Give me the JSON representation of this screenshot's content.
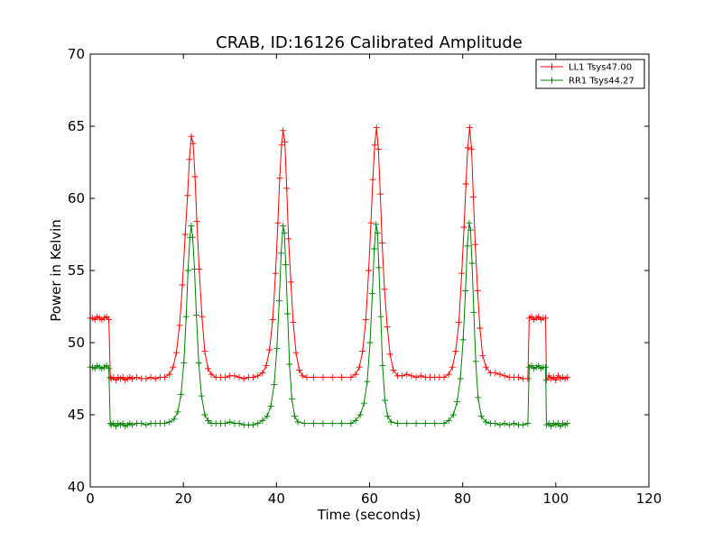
{
  "chart_data": {
    "type": "line",
    "title": "CRAB, ID:16126 Calibrated Amplitude",
    "xlabel": "Time (seconds)",
    "ylabel": "Power in Kelvin",
    "xlim": [
      0,
      120
    ],
    "ylim": [
      40,
      70
    ],
    "xticks": [
      0,
      20,
      40,
      60,
      80,
      100,
      120
    ],
    "yticks": [
      40,
      45,
      50,
      55,
      60,
      65,
      70
    ],
    "grid": false,
    "legend_position": "top-right",
    "marker": "+",
    "series": [
      {
        "name": "LL1 Tsys47.00",
        "color": "#ff0000",
        "points": [
          [
            0.0,
            51.7
          ],
          [
            0.5,
            51.7
          ],
          [
            1.0,
            51.6
          ],
          [
            1.5,
            51.8
          ],
          [
            2.0,
            51.7
          ],
          [
            2.5,
            51.6
          ],
          [
            3.0,
            51.7
          ],
          [
            3.5,
            51.8
          ],
          [
            4.0,
            51.6
          ],
          [
            4.3,
            47.6
          ],
          [
            4.5,
            47.5
          ],
          [
            5.0,
            47.6
          ],
          [
            5.5,
            47.4
          ],
          [
            6.0,
            47.6
          ],
          [
            6.5,
            47.5
          ],
          [
            7.0,
            47.6
          ],
          [
            7.5,
            47.4
          ],
          [
            8.0,
            47.5
          ],
          [
            8.5,
            47.6
          ],
          [
            9.0,
            47.5
          ],
          [
            10.0,
            47.6
          ],
          [
            11.0,
            47.5
          ],
          [
            12.0,
            47.5
          ],
          [
            13.0,
            47.6
          ],
          [
            14.0,
            47.5
          ],
          [
            15.0,
            47.6
          ],
          [
            16.0,
            47.6
          ],
          [
            17.0,
            47.8
          ],
          [
            17.8,
            48.3
          ],
          [
            18.5,
            49.3
          ],
          [
            19.2,
            51.2
          ],
          [
            19.8,
            54.0
          ],
          [
            20.4,
            57.5
          ],
          [
            20.9,
            60.2
          ],
          [
            21.3,
            62.7
          ],
          [
            21.7,
            64.3
          ],
          [
            22.1,
            63.8
          ],
          [
            22.5,
            61.5
          ],
          [
            22.9,
            58.4
          ],
          [
            23.4,
            55.1
          ],
          [
            24.0,
            51.8
          ],
          [
            24.6,
            49.4
          ],
          [
            25.3,
            48.2
          ],
          [
            26.0,
            47.8
          ],
          [
            27.0,
            47.6
          ],
          [
            28.0,
            47.6
          ],
          [
            29.0,
            47.6
          ],
          [
            30.0,
            47.7
          ],
          [
            31.0,
            47.7
          ],
          [
            32.0,
            47.6
          ],
          [
            33.0,
            47.5
          ],
          [
            34.0,
            47.6
          ],
          [
            35.0,
            47.6
          ],
          [
            36.0,
            47.7
          ],
          [
            37.0,
            47.9
          ],
          [
            37.8,
            48.4
          ],
          [
            38.5,
            49.5
          ],
          [
            39.2,
            51.6
          ],
          [
            39.8,
            54.8
          ],
          [
            40.3,
            58.3
          ],
          [
            40.7,
            61.4
          ],
          [
            41.1,
            63.7
          ],
          [
            41.4,
            64.7
          ],
          [
            41.8,
            63.9
          ],
          [
            42.2,
            60.7
          ],
          [
            42.6,
            57.2
          ],
          [
            43.1,
            54.2
          ],
          [
            43.6,
            51.4
          ],
          [
            44.2,
            49.3
          ],
          [
            44.9,
            48.1
          ],
          [
            45.6,
            47.7
          ],
          [
            46.5,
            47.6
          ],
          [
            48.0,
            47.6
          ],
          [
            50.0,
            47.6
          ],
          [
            52.0,
            47.6
          ],
          [
            54.0,
            47.6
          ],
          [
            56.0,
            47.6
          ],
          [
            57.0,
            47.8
          ],
          [
            57.8,
            48.3
          ],
          [
            58.5,
            49.4
          ],
          [
            59.2,
            51.6
          ],
          [
            59.8,
            55.0
          ],
          [
            60.3,
            58.3
          ],
          [
            60.7,
            61.3
          ],
          [
            61.1,
            63.7
          ],
          [
            61.5,
            64.9
          ],
          [
            61.9,
            63.4
          ],
          [
            62.3,
            60.3
          ],
          [
            62.7,
            56.9
          ],
          [
            63.2,
            53.7
          ],
          [
            63.8,
            51.1
          ],
          [
            64.4,
            49.2
          ],
          [
            65.1,
            48.1
          ],
          [
            66.0,
            47.7
          ],
          [
            67.0,
            47.7
          ],
          [
            68.0,
            47.8
          ],
          [
            69.0,
            47.7
          ],
          [
            70.0,
            47.6
          ],
          [
            71.0,
            47.7
          ],
          [
            72.0,
            47.6
          ],
          [
            73.0,
            47.6
          ],
          [
            74.0,
            47.6
          ],
          [
            75.0,
            47.6
          ],
          [
            76.0,
            47.6
          ],
          [
            77.0,
            47.8
          ],
          [
            77.8,
            48.3
          ],
          [
            78.5,
            49.4
          ],
          [
            79.2,
            51.4
          ],
          [
            79.8,
            54.8
          ],
          [
            80.3,
            58.0
          ],
          [
            80.7,
            61.0
          ],
          [
            81.1,
            63.5
          ],
          [
            81.5,
            64.9
          ],
          [
            81.9,
            63.4
          ],
          [
            82.3,
            60.1
          ],
          [
            82.7,
            56.8
          ],
          [
            83.2,
            53.6
          ],
          [
            83.7,
            51.0
          ],
          [
            84.3,
            49.1
          ],
          [
            85.0,
            48.3
          ],
          [
            86.0,
            47.9
          ],
          [
            87.0,
            47.9
          ],
          [
            88.0,
            47.8
          ],
          [
            89.0,
            47.7
          ],
          [
            90.0,
            47.6
          ],
          [
            91.0,
            47.6
          ],
          [
            92.0,
            47.6
          ],
          [
            93.0,
            47.5
          ],
          [
            94.0,
            47.5
          ],
          [
            94.3,
            51.7
          ],
          [
            94.8,
            51.8
          ],
          [
            95.3,
            51.6
          ],
          [
            95.8,
            51.7
          ],
          [
            96.3,
            51.8
          ],
          [
            96.8,
            51.6
          ],
          [
            97.3,
            51.7
          ],
          [
            97.8,
            51.7
          ],
          [
            98.0,
            47.4
          ],
          [
            98.5,
            47.7
          ],
          [
            99.0,
            47.5
          ],
          [
            99.5,
            47.6
          ],
          [
            100.0,
            47.4
          ],
          [
            100.5,
            47.7
          ],
          [
            101.0,
            47.5
          ],
          [
            101.5,
            47.6
          ],
          [
            102.0,
            47.5
          ],
          [
            102.5,
            47.6
          ]
        ]
      },
      {
        "name": "RR1 Tsys44.27",
        "color": "#008000",
        "points": [
          [
            0.0,
            48.3
          ],
          [
            0.5,
            48.3
          ],
          [
            1.0,
            48.2
          ],
          [
            1.5,
            48.4
          ],
          [
            2.0,
            48.3
          ],
          [
            2.5,
            48.2
          ],
          [
            3.0,
            48.3
          ],
          [
            3.5,
            48.4
          ],
          [
            4.0,
            48.2
          ],
          [
            4.3,
            44.4
          ],
          [
            4.5,
            44.3
          ],
          [
            5.0,
            44.4
          ],
          [
            5.5,
            44.2
          ],
          [
            6.0,
            44.4
          ],
          [
            6.5,
            44.3
          ],
          [
            7.0,
            44.4
          ],
          [
            7.5,
            44.2
          ],
          [
            8.0,
            44.3
          ],
          [
            8.5,
            44.4
          ],
          [
            9.0,
            44.3
          ],
          [
            10.0,
            44.4
          ],
          [
            11.0,
            44.4
          ],
          [
            12.0,
            44.3
          ],
          [
            13.0,
            44.4
          ],
          [
            14.0,
            44.4
          ],
          [
            15.0,
            44.4
          ],
          [
            16.0,
            44.4
          ],
          [
            17.0,
            44.5
          ],
          [
            18.0,
            44.7
          ],
          [
            18.8,
            45.2
          ],
          [
            19.5,
            46.4
          ],
          [
            20.1,
            48.6
          ],
          [
            20.6,
            51.8
          ],
          [
            21.0,
            55.0
          ],
          [
            21.4,
            57.3
          ],
          [
            21.7,
            58.1
          ],
          [
            22.0,
            57.3
          ],
          [
            22.4,
            55.1
          ],
          [
            22.8,
            51.9
          ],
          [
            23.3,
            48.6
          ],
          [
            23.9,
            46.3
          ],
          [
            24.6,
            45.0
          ],
          [
            25.3,
            44.6
          ],
          [
            26.0,
            44.4
          ],
          [
            27.0,
            44.4
          ],
          [
            28.0,
            44.4
          ],
          [
            29.0,
            44.4
          ],
          [
            30.0,
            44.5
          ],
          [
            31.0,
            44.4
          ],
          [
            32.0,
            44.4
          ],
          [
            33.0,
            44.3
          ],
          [
            34.0,
            44.3
          ],
          [
            35.0,
            44.3
          ],
          [
            36.0,
            44.4
          ],
          [
            37.0,
            44.6
          ],
          [
            38.0,
            44.9
          ],
          [
            38.8,
            45.6
          ],
          [
            39.5,
            47.1
          ],
          [
            40.1,
            49.6
          ],
          [
            40.6,
            52.9
          ],
          [
            41.0,
            56.2
          ],
          [
            41.4,
            58.1
          ],
          [
            41.7,
            57.6
          ],
          [
            42.0,
            55.4
          ],
          [
            42.4,
            52.0
          ],
          [
            42.8,
            48.5
          ],
          [
            43.3,
            46.1
          ],
          [
            43.9,
            44.9
          ],
          [
            44.6,
            44.5
          ],
          [
            46.0,
            44.4
          ],
          [
            48.0,
            44.4
          ],
          [
            50.0,
            44.4
          ],
          [
            52.0,
            44.4
          ],
          [
            54.0,
            44.4
          ],
          [
            56.0,
            44.4
          ],
          [
            57.0,
            44.6
          ],
          [
            58.0,
            45.0
          ],
          [
            58.8,
            45.8
          ],
          [
            59.5,
            47.3
          ],
          [
            60.1,
            50.0
          ],
          [
            60.6,
            53.4
          ],
          [
            61.0,
            56.5
          ],
          [
            61.4,
            58.2
          ],
          [
            61.7,
            57.6
          ],
          [
            62.0,
            55.2
          ],
          [
            62.4,
            51.8
          ],
          [
            62.8,
            48.4
          ],
          [
            63.3,
            46.0
          ],
          [
            63.9,
            44.9
          ],
          [
            64.6,
            44.5
          ],
          [
            66.0,
            44.4
          ],
          [
            68.0,
            44.4
          ],
          [
            70.0,
            44.4
          ],
          [
            72.0,
            44.4
          ],
          [
            74.0,
            44.4
          ],
          [
            76.0,
            44.4
          ],
          [
            77.0,
            44.6
          ],
          [
            78.0,
            45.0
          ],
          [
            78.8,
            45.9
          ],
          [
            79.5,
            47.5
          ],
          [
            80.1,
            50.2
          ],
          [
            80.6,
            53.6
          ],
          [
            81.0,
            56.7
          ],
          [
            81.4,
            58.3
          ],
          [
            81.7,
            57.8
          ],
          [
            82.0,
            55.5
          ],
          [
            82.4,
            52.1
          ],
          [
            82.8,
            48.7
          ],
          [
            83.3,
            46.2
          ],
          [
            84.0,
            44.9
          ],
          [
            85.0,
            44.5
          ],
          [
            86.0,
            44.4
          ],
          [
            87.0,
            44.4
          ],
          [
            88.0,
            44.3
          ],
          [
            89.0,
            44.4
          ],
          [
            90.0,
            44.3
          ],
          [
            91.0,
            44.4
          ],
          [
            92.0,
            44.3
          ],
          [
            93.0,
            44.3
          ],
          [
            94.0,
            44.4
          ],
          [
            94.3,
            48.3
          ],
          [
            94.8,
            48.4
          ],
          [
            95.3,
            48.2
          ],
          [
            95.8,
            48.3
          ],
          [
            96.3,
            48.4
          ],
          [
            96.8,
            48.2
          ],
          [
            97.3,
            48.3
          ],
          [
            97.8,
            48.3
          ],
          [
            98.0,
            44.3
          ],
          [
            98.5,
            44.4
          ],
          [
            99.0,
            44.2
          ],
          [
            99.5,
            44.4
          ],
          [
            100.0,
            44.3
          ],
          [
            100.5,
            44.4
          ],
          [
            101.0,
            44.2
          ],
          [
            101.5,
            44.4
          ],
          [
            102.0,
            44.3
          ],
          [
            102.5,
            44.4
          ]
        ]
      }
    ]
  }
}
